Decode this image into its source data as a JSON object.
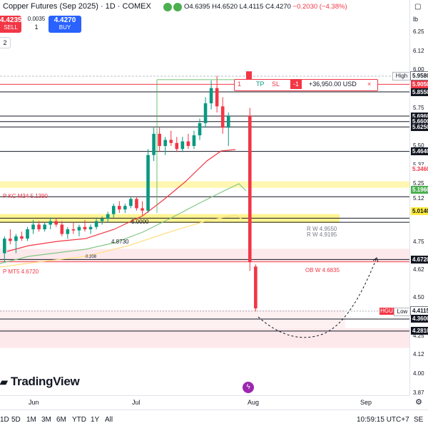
{
  "header": {
    "title": "Copper Futures (Sep 2025) · 1D · COMEX",
    "status_colors": [
      "#4caf50",
      "#4caf50"
    ],
    "ohlc": {
      "open_label": "O",
      "open": "4.6395",
      "high_label": "H",
      "high": "4.6520",
      "low_label": "L",
      "low": "4.4115",
      "close_label": "C",
      "close": "4.4270",
      "change": "−0.2030 (−4.38%)"
    }
  },
  "trade": {
    "sell_price": "4.4235",
    "sell_label": "SELL",
    "spread": "0.0035",
    "qty": "1",
    "buy_price": "4.4270",
    "buy_label": "BUY"
  },
  "legend_toggle": "2",
  "yaxis": {
    "unit": "lb",
    "ticks": [
      "6.25000",
      "6.12500",
      "6.00000",
      "5.75000",
      "5.50000",
      "5.37500",
      "5.25000",
      "5.12500",
      "4.75000",
      "4.62500",
      "4.50000",
      "4.25000",
      "4.12500",
      "4.00000",
      "3.87500"
    ],
    "badges": [
      {
        "label": "5.9580",
        "color": "#ffffff",
        "text_color": "#131722",
        "border": "#787b86"
      },
      {
        "label": "5.9050",
        "color": "#f23645",
        "text_color": "#ffffff"
      },
      {
        "label": "5.8550",
        "color": "#131722",
        "text_color": "#ffffff"
      },
      {
        "label": "5.6960",
        "color": "#131722",
        "text_color": "#ffffff"
      },
      {
        "label": "5.6600",
        "color": "#131722",
        "text_color": "#ffffff"
      },
      {
        "label": "5.6250",
        "color": "#131722",
        "text_color": "#ffffff"
      },
      {
        "label": "5.4640",
        "color": "#131722",
        "text_color": "#ffffff"
      },
      {
        "label": "5.3460",
        "color": "#ffffff",
        "text_color": "#f23645"
      },
      {
        "label": "5.1960",
        "color": "#4caf50",
        "text_color": "#ffffff"
      },
      {
        "label": "5.0140",
        "color": "#ffeb3b",
        "text_color": "#131722"
      },
      {
        "label": "4.6720",
        "color": "#131722",
        "text_color": "#ffffff"
      },
      {
        "label": "4.4115",
        "color": "#ffffff",
        "text_color": "#131722",
        "border": "#787b86"
      },
      {
        "label": "4.3600",
        "color": "#131722",
        "text_color": "#ffffff"
      },
      {
        "label": "4.2810",
        "color": "#131722",
        "text_color": "#ffffff"
      }
    ]
  },
  "xaxis": {
    "ticks": [
      "Jun",
      "Jul",
      "Aug",
      "Sep"
    ]
  },
  "annotations": {
    "kc": "P KC M34 5.1390",
    "rw1": "R W 4.9550",
    "rw2": "R W 4.9195",
    "five": "5.0000",
    "v4873": "4.8730",
    "small": "0.208",
    "mt5": "P MT5 4.6720",
    "obw": "OB W 4.6835"
  },
  "order_toolbar": {
    "pct": "1",
    "tp": "TP",
    "sl": "SL",
    "qty": "-1",
    "pnl": "+36,950.00 USD",
    "close": "×"
  },
  "tags": {
    "high": "High",
    "low": "Low",
    "hg": "HGU"
  },
  "logo": "TradingView",
  "bottombar": {
    "timeframes": [
      "1D",
      "5D",
      "1M",
      "3M",
      "6M",
      "YTD",
      "1Y",
      "All"
    ],
    "clock": "10:59:15 UTC+7",
    "session": "SE"
  },
  "colors": {
    "up": "#089981",
    "down": "#f23645",
    "accent": "#2962ff"
  },
  "chart_data": {
    "type": "candlestick",
    "title": "Copper Futures (Sep 2025) · 1D · COMEX",
    "ylim": [
      3.875,
      6.25
    ],
    "scale_points": [
      [
        6.25,
        45
      ],
      [
        6.0,
        98
      ],
      [
        5.5,
        205
      ],
      [
        5.25,
        258
      ],
      [
        4.75,
        340
      ],
      [
        4.5,
        418
      ],
      [
        4.0,
        525
      ]
    ],
    "grid": false,
    "series": [
      {
        "name": "candles",
        "ohlc": [
          [
            4.7,
            4.8,
            4.66,
            4.78
          ],
          [
            4.78,
            4.86,
            4.74,
            4.76
          ],
          [
            4.76,
            4.82,
            4.7,
            4.8
          ],
          [
            4.8,
            4.84,
            4.76,
            4.78
          ],
          [
            4.78,
            4.88,
            4.76,
            4.86
          ],
          [
            4.86,
            4.94,
            4.82,
            4.9
          ],
          [
            4.9,
            4.93,
            4.84,
            4.86
          ],
          [
            4.86,
            4.92,
            4.84,
            4.9
          ],
          [
            4.9,
            4.96,
            4.86,
            4.93
          ],
          [
            4.93,
            4.95,
            4.88,
            4.9
          ],
          [
            4.9,
            4.93,
            4.8,
            4.82
          ],
          [
            4.82,
            4.88,
            4.78,
            4.86
          ],
          [
            4.86,
            4.92,
            4.82,
            4.85
          ],
          [
            4.85,
            4.9,
            4.8,
            4.88
          ],
          [
            4.88,
            4.94,
            4.84,
            4.86
          ],
          [
            4.86,
            4.9,
            4.82,
            4.88
          ],
          [
            4.88,
            4.95,
            4.86,
            4.93
          ],
          [
            4.93,
            4.97,
            4.9,
            4.95
          ],
          [
            4.95,
            5.01,
            4.92,
            4.99
          ],
          [
            4.99,
            5.08,
            4.96,
            5.06
          ],
          [
            5.06,
            5.1,
            5.0,
            5.03
          ],
          [
            5.03,
            5.08,
            5.0,
            5.06
          ],
          [
            5.06,
            5.14,
            5.04,
            5.12
          ],
          [
            5.12,
            5.14,
            5.02,
            5.04
          ],
          [
            5.04,
            5.1,
            4.98,
            5.02
          ],
          [
            5.02,
            5.48,
            5.0,
            5.44
          ],
          [
            5.44,
            5.62,
            5.4,
            5.58
          ],
          [
            5.58,
            5.62,
            5.46,
            5.5
          ],
          [
            5.5,
            5.56,
            5.44,
            5.54
          ],
          [
            5.54,
            5.6,
            5.5,
            5.52
          ],
          [
            5.52,
            5.56,
            5.46,
            5.48
          ],
          [
            5.48,
            5.56,
            5.46,
            5.53
          ],
          [
            5.53,
            5.58,
            5.48,
            5.5
          ],
          [
            5.5,
            5.6,
            5.48,
            5.57
          ],
          [
            5.57,
            5.68,
            5.54,
            5.65
          ],
          [
            5.65,
            5.82,
            5.62,
            5.78
          ],
          [
            5.78,
            5.93,
            5.74,
            5.88
          ],
          [
            5.88,
            5.96,
            5.72,
            5.76
          ],
          [
            5.76,
            5.82,
            5.58,
            5.62
          ],
          [
            5.62,
            5.72,
            5.5,
            5.7
          ],
          [
            5.7,
            5.75,
            4.62,
            4.66
          ],
          [
            4.64,
            4.65,
            4.41,
            4.43
          ]
        ]
      }
    ]
  }
}
